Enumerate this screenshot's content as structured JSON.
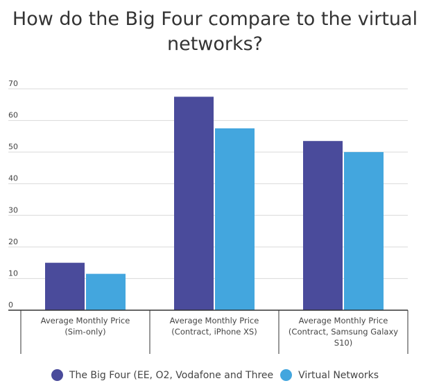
{
  "chart_data": {
    "type": "bar",
    "title": "How do the Big Four compare to the virtual networks?",
    "categories": [
      "Average Monthly Price (Sim-only)",
      "Average Monthly Price (Contract, iPhone XS)",
      "Average Monthly Price (Contract, Samsung Galaxy S10)"
    ],
    "series": [
      {
        "name": "The Big Four (EE, O2, Vodafone and Three",
        "color": "#4a4b9b",
        "values": [
          15,
          67.5,
          53.5
        ]
      },
      {
        "name": "Virtual Networks",
        "color": "#43a6de",
        "values": [
          11.5,
          57.5,
          50
        ]
      }
    ],
    "xlabel": "",
    "ylabel": "",
    "ylim": [
      0,
      70
    ],
    "yticks": [
      0,
      10,
      20,
      30,
      40,
      50,
      60,
      70
    ],
    "grid": true,
    "legend": "bottom"
  }
}
